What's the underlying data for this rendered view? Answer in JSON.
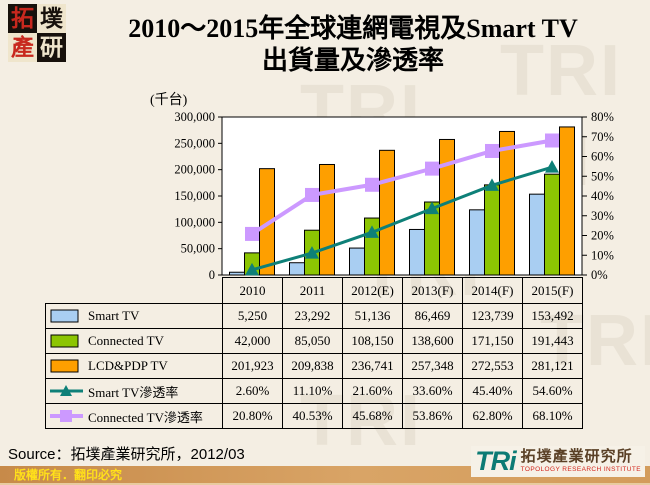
{
  "seal": {
    "chars": [
      "拓",
      "墣",
      "產",
      "研"
    ]
  },
  "title": {
    "line1": "2010～2015年全球連網電視及Smart TV",
    "line2": "出貨量及滲透率"
  },
  "chart_data": {
    "type": "combo-bar-line",
    "categories": [
      "2010",
      "2011",
      "2012(E)",
      "2013(F)",
      "2014(F)",
      "2015(F)"
    ],
    "unit_label": "(千台)",
    "plot_bg": "#FFFFFF",
    "left_axis": {
      "min": 0,
      "max": 300000,
      "step": 50000,
      "tick_labels": [
        "0",
        "50,000",
        "100,000",
        "150,000",
        "200,000",
        "250,000",
        "300,000"
      ]
    },
    "right_axis": {
      "min": 0,
      "max": 80,
      "step": 10,
      "tick_labels": [
        "0%",
        "10%",
        "20%",
        "30%",
        "40%",
        "50%",
        "60%",
        "70%",
        "80%"
      ]
    },
    "bar_series": [
      {
        "name": "Smart TV",
        "color": "#A9CEF2",
        "values": [
          5250,
          23292,
          51136,
          86469,
          123739,
          153492
        ],
        "display": [
          "5,250",
          "23,292",
          "51,136",
          "86,469",
          "123,739",
          "153,492"
        ]
      },
      {
        "name": "Connected TV",
        "color": "#8CC502",
        "values": [
          42000,
          85050,
          108150,
          138600,
          171150,
          191443
        ],
        "display": [
          "42,000",
          "85,050",
          "108,150",
          "138,600",
          "171,150",
          "191,443"
        ]
      },
      {
        "name": "LCD&PDP TV",
        "color": "#FE9F00",
        "values": [
          201923,
          209838,
          236741,
          257348,
          272553,
          281121
        ],
        "display": [
          "201,923",
          "209,838",
          "236,741",
          "257,348",
          "272,553",
          "281,121"
        ]
      }
    ],
    "line_series": [
      {
        "name": "Smart TV滲透率",
        "color": "#0E8078",
        "marker": "triangle",
        "values": [
          2.6,
          11.1,
          21.6,
          33.6,
          45.4,
          54.6
        ],
        "display": [
          "2.60%",
          "11.10%",
          "21.60%",
          "33.60%",
          "45.40%",
          "54.60%"
        ]
      },
      {
        "name": "Connected TV滲透率",
        "color": "#CC99FF",
        "marker": "square",
        "values": [
          20.8,
          40.53,
          45.68,
          53.86,
          62.8,
          68.1
        ],
        "display": [
          "20.80%",
          "40.53%",
          "45.68%",
          "53.86%",
          "62.80%",
          "68.10%"
        ]
      }
    ]
  },
  "source_line": "Source：拓墣產業研究所，2012/03",
  "footer": {
    "copyright": "版權所有．翻印必究"
  },
  "tri_logo": {
    "acronym": "TRi",
    "cn": "拓墣產業研究所",
    "en": "TOPOLOGY RESEARCH INSTITUTE"
  }
}
